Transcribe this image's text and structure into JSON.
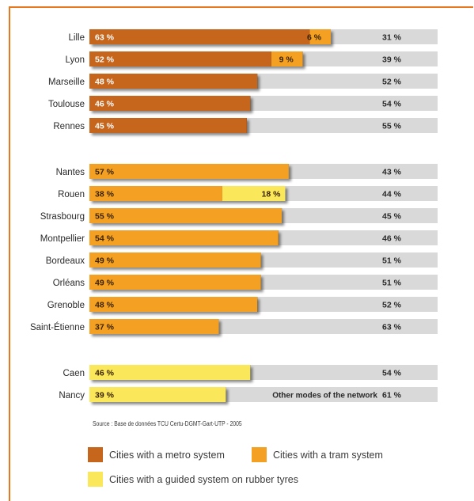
{
  "colors": {
    "metro": "#c6651c",
    "tram": "#f4a023",
    "guided": "#fbe75a",
    "other": "#d9d9d9"
  },
  "chart_data": {
    "type": "bar",
    "stacked": true,
    "orientation": "horizontal",
    "title": "",
    "xlabel": "",
    "ylabel": "",
    "xlim": [
      0,
      100
    ],
    "unit": "%",
    "categories": [
      "Lille",
      "Lyon",
      "Marseille",
      "Toulouse",
      "Rennes",
      "Nantes",
      "Rouen",
      "Strasbourg",
      "Montpellier",
      "Bordeaux",
      "Orléans",
      "Grenoble",
      "Saint-Étienne",
      "Caen",
      "Nancy"
    ],
    "groups": [
      {
        "system": "metro",
        "cities": [
          "Lille",
          "Lyon",
          "Marseille",
          "Toulouse",
          "Rennes"
        ]
      },
      {
        "system": "tram",
        "cities": [
          "Nantes",
          "Rouen",
          "Strasbourg",
          "Montpellier",
          "Bordeaux",
          "Orléans",
          "Grenoble",
          "Saint-Étienne"
        ]
      },
      {
        "system": "guided",
        "cities": [
          "Caen",
          "Nancy"
        ]
      }
    ],
    "rows": [
      {
        "city": "Lille",
        "segments": [
          {
            "mode": "metro",
            "value": 63,
            "label": "63 %"
          },
          {
            "mode": "tram",
            "value": 6,
            "label": "6 %"
          }
        ],
        "other": {
          "value": 31,
          "label": "31 %"
        }
      },
      {
        "city": "Lyon",
        "segments": [
          {
            "mode": "metro",
            "value": 52,
            "label": "52 %"
          },
          {
            "mode": "tram",
            "value": 9,
            "label": "9 %"
          }
        ],
        "other": {
          "value": 39,
          "label": "39 %"
        }
      },
      {
        "city": "Marseille",
        "segments": [
          {
            "mode": "metro",
            "value": 48,
            "label": "48 %"
          }
        ],
        "other": {
          "value": 52,
          "label": "52 %"
        }
      },
      {
        "city": "Toulouse",
        "segments": [
          {
            "mode": "metro",
            "value": 46,
            "label": "46 %"
          }
        ],
        "other": {
          "value": 54,
          "label": "54 %"
        }
      },
      {
        "city": "Rennes",
        "segments": [
          {
            "mode": "metro",
            "value": 45,
            "label": "45 %"
          }
        ],
        "other": {
          "value": 55,
          "label": "55 %"
        }
      },
      {
        "city": "Nantes",
        "segments": [
          {
            "mode": "tram",
            "value": 57,
            "label": "57 %"
          }
        ],
        "other": {
          "value": 43,
          "label": "43 %"
        }
      },
      {
        "city": "Rouen",
        "segments": [
          {
            "mode": "tram",
            "value": 38,
            "label": "38 %"
          },
          {
            "mode": "guided",
            "value": 18,
            "label": "18 %"
          }
        ],
        "other": {
          "value": 44,
          "label": "44 %"
        }
      },
      {
        "city": "Strasbourg",
        "segments": [
          {
            "mode": "tram",
            "value": 55,
            "label": "55 %"
          }
        ],
        "other": {
          "value": 45,
          "label": "45 %"
        }
      },
      {
        "city": "Montpellier",
        "segments": [
          {
            "mode": "tram",
            "value": 54,
            "label": "54 %"
          }
        ],
        "other": {
          "value": 46,
          "label": "46 %"
        }
      },
      {
        "city": "Bordeaux",
        "segments": [
          {
            "mode": "tram",
            "value": 49,
            "label": "49 %"
          }
        ],
        "other": {
          "value": 51,
          "label": "51 %"
        }
      },
      {
        "city": "Orléans",
        "segments": [
          {
            "mode": "tram",
            "value": 49,
            "label": "49 %"
          }
        ],
        "other": {
          "value": 51,
          "label": "51 %"
        }
      },
      {
        "city": "Grenoble",
        "segments": [
          {
            "mode": "tram",
            "value": 48,
            "label": "48 %"
          }
        ],
        "other": {
          "value": 52,
          "label": "52 %"
        }
      },
      {
        "city": "Saint-Étienne",
        "segments": [
          {
            "mode": "tram",
            "value": 37,
            "label": "37 %"
          }
        ],
        "other": {
          "value": 63,
          "label": "63 %"
        }
      },
      {
        "city": "Caen",
        "segments": [
          {
            "mode": "guided",
            "value": 46,
            "label": "46 %"
          }
        ],
        "other": {
          "value": 54,
          "label": "54 %"
        }
      },
      {
        "city": "Nancy",
        "segments": [
          {
            "mode": "guided",
            "value": 39,
            "label": "39 %"
          }
        ],
        "other": {
          "value": 61,
          "label": "61 %"
        }
      }
    ],
    "annotation": "Other modes of the network",
    "source": "Source : Base de données TCU Certu-DGMT-Gart-UTP - 2005",
    "legend": [
      {
        "key": "metro",
        "label": "Cities with a metro system"
      },
      {
        "key": "tram",
        "label": "Cities with a tram system"
      },
      {
        "key": "guided",
        "label": "Cities with a guided system on rubber tyres"
      }
    ],
    "legend_position": "bottom"
  }
}
